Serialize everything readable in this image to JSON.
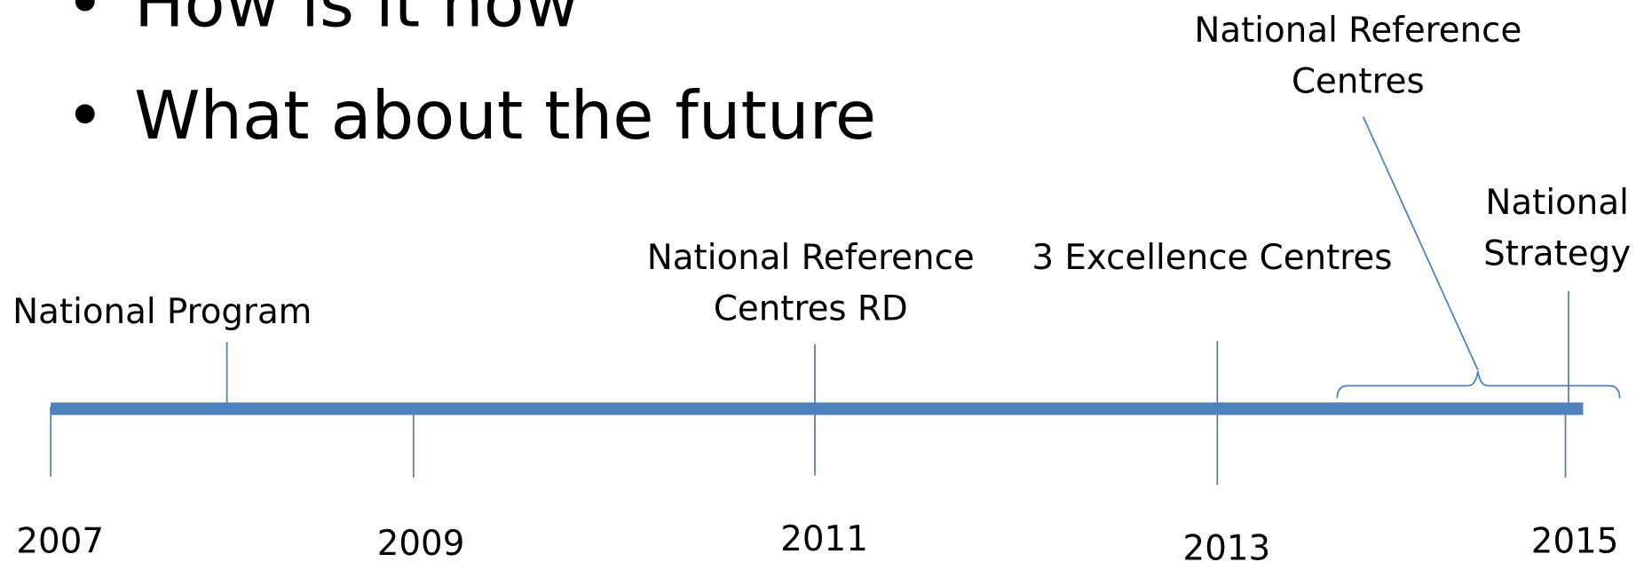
{
  "bullets": [
    "How is it now",
    "What about the future"
  ],
  "years": [
    "2007",
    "2009",
    "2011",
    "2013",
    "2015"
  ],
  "events": [
    {
      "lines": [
        "National Program"
      ]
    },
    {
      "lines": [
        "National Reference",
        "Centres RD"
      ]
    },
    {
      "lines": [
        "3 Excellence Centres"
      ]
    },
    {
      "lines": [
        "National Reference",
        "Centres"
      ]
    },
    {
      "lines": [
        "National",
        "Strategy"
      ]
    }
  ]
}
